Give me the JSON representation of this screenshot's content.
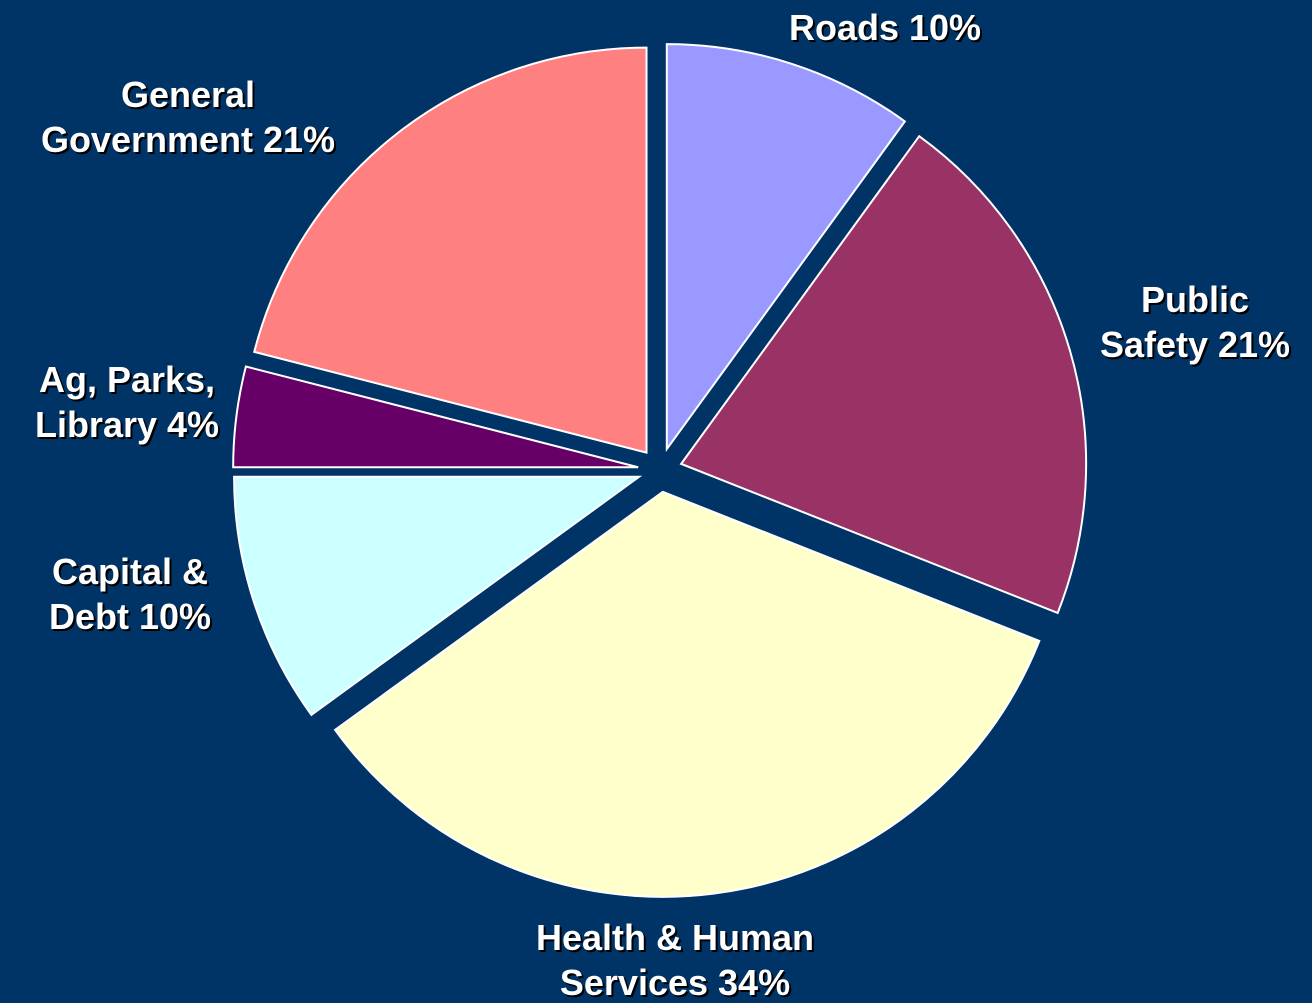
{
  "chart_data": {
    "type": "pie",
    "categories": [
      "Roads",
      "Public Safety",
      "Health & Human Services",
      "Capital & Debt",
      "Ag, Parks, Library",
      "General Government"
    ],
    "values": [
      10,
      21,
      34,
      10,
      4,
      21
    ],
    "value_labels": [
      "10%",
      "21%",
      "34%",
      "10%",
      "4%",
      "21%"
    ],
    "colors": [
      "#9999ff",
      "#993366",
      "#ffffcc",
      "#ccffff",
      "#660066",
      "#ff8080"
    ]
  }
}
